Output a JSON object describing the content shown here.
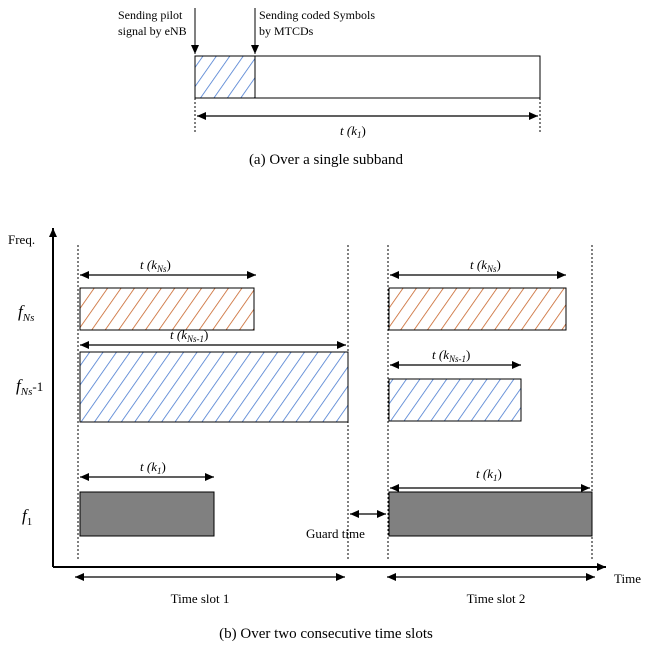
{
  "top_diagram": {
    "pilot_label_line1": "Sending pilot",
    "pilot_label_line2": "signal by eNB",
    "coded_label_line1": "Sending coded Symbols",
    "coded_label_line2": "by MTCDs",
    "duration_label": "t (k",
    "duration_sub": "1",
    "duration_close": ")",
    "caption": "(a) Over a single subband",
    "hatch_color": "#4a7bd0"
  },
  "bottom_diagram": {
    "y_axis_label": "Freq.",
    "x_axis_label": "Time",
    "rows": [
      {
        "freq_main": "f",
        "freq_sub": "Ns",
        "freq_suffix": "",
        "color": "#c8642a"
      },
      {
        "freq_main": "f",
        "freq_sub": "Ns",
        "freq_suffix": "-1",
        "color": "#4a7bd0"
      },
      {
        "freq_main": "f",
        "freq_sub": "1",
        "freq_suffix": "",
        "color": "#808080"
      }
    ],
    "durations": {
      "row1_main": "t (k",
      "row1_sub": "Ns",
      "row1_close": ")",
      "row2_main": "t (k",
      "row2_sub": "Ns-1",
      "row2_close": ")",
      "row3_main": "t (k",
      "row3_sub": "1",
      "row3_close": ")"
    },
    "guard_time_label": "Guard time",
    "time_slot_1_label": "Time slot 1",
    "time_slot_2_label": "Time slot 2",
    "caption": "(b) Over two consecutive time slots"
  }
}
